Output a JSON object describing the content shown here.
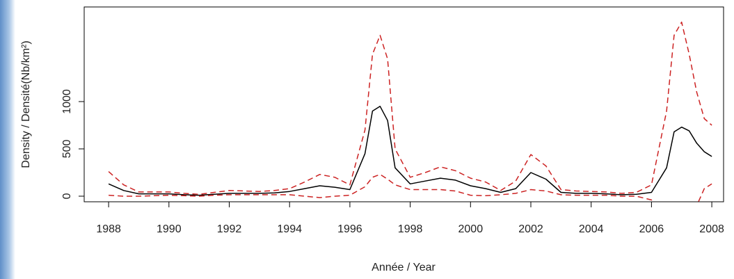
{
  "chart_data": {
    "type": "line",
    "x_label": "Année / Year",
    "y_label": "Density / Densité(Nb/km²)",
    "x": [
      1988,
      1988.5,
      1989,
      1989.5,
      1990,
      1990.5,
      1991,
      1991.5,
      1992,
      1992.5,
      1993,
      1993.5,
      1994,
      1994.5,
      1995,
      1995.5,
      1996,
      1996.5,
      1996.75,
      1997,
      1997.25,
      1997.5,
      1998,
      1998.5,
      1999,
      1999.5,
      2000,
      2000.5,
      2001,
      2001.5,
      2002,
      2002.5,
      2003,
      2003.5,
      2004,
      2004.5,
      2005,
      2005.5,
      2006,
      2006.5,
      2006.75,
      2007,
      2007.25,
      2007.5,
      2007.75,
      2008
    ],
    "series": [
      {
        "color": "#000000",
        "dash": false,
        "values": [
          130,
          60,
          25,
          25,
          25,
          15,
          10,
          20,
          30,
          30,
          30,
          35,
          50,
          80,
          110,
          95,
          70,
          450,
          900,
          950,
          800,
          300,
          130,
          160,
          190,
          170,
          110,
          80,
          40,
          80,
          250,
          180,
          40,
          30,
          30,
          25,
          15,
          20,
          40,
          300,
          680,
          730,
          690,
          560,
          470,
          420
        ]
      },
      {
        "color": "#cc2222",
        "dash": true,
        "values": [
          260,
          120,
          45,
          45,
          45,
          30,
          20,
          40,
          60,
          55,
          50,
          60,
          80,
          150,
          230,
          200,
          120,
          700,
          1500,
          1700,
          1450,
          500,
          200,
          250,
          310,
          270,
          190,
          150,
          60,
          160,
          440,
          320,
          70,
          55,
          50,
          45,
          30,
          40,
          120,
          900,
          1700,
          1840,
          1500,
          1100,
          820,
          750
        ]
      },
      {
        "color": "#cc2222",
        "dash": true,
        "values": [
          10,
          0,
          0,
          5,
          10,
          5,
          0,
          10,
          15,
          15,
          15,
          15,
          15,
          0,
          -15,
          0,
          10,
          100,
          200,
          230,
          180,
          120,
          70,
          70,
          70,
          55,
          10,
          5,
          15,
          30,
          70,
          55,
          15,
          10,
          10,
          10,
          0,
          0,
          -40,
          -300,
          -300,
          -300,
          -300,
          -100,
          80,
          130
        ]
      }
    ],
    "xlim": [
      1987.19,
      2008.39
    ],
    "ylim": [
      -59,
      2000
    ],
    "xticks": [
      1988,
      1990,
      1992,
      1994,
      1996,
      1998,
      2000,
      2002,
      2004,
      2006,
      2008
    ],
    "yticks": [
      0,
      500,
      1000
    ]
  }
}
